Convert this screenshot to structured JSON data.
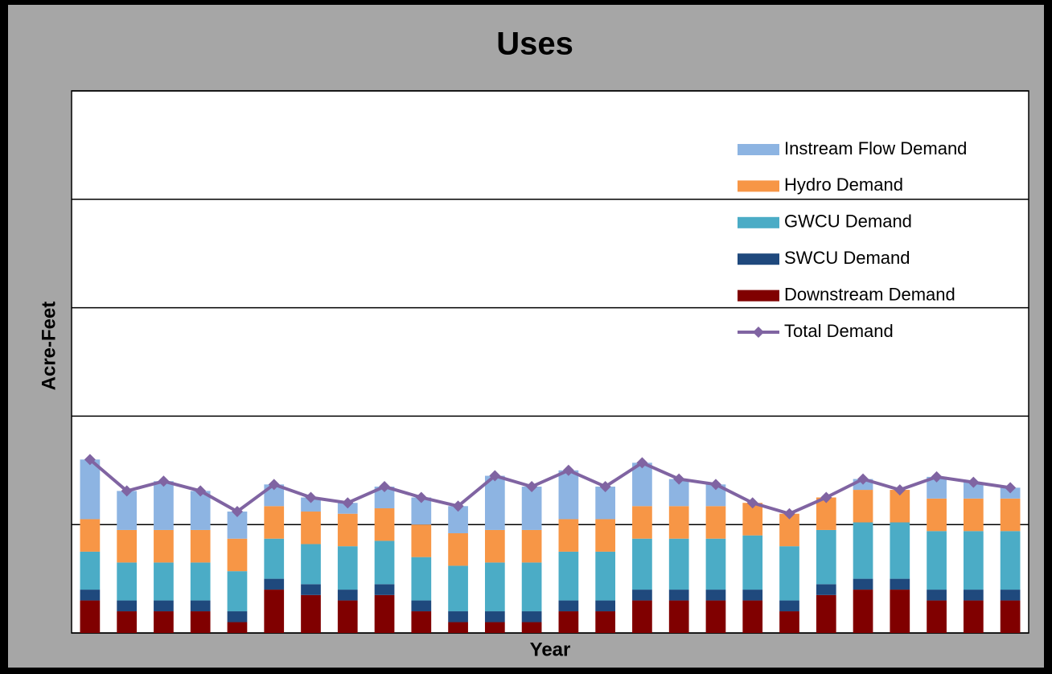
{
  "chart_data": {
    "type": "bar",
    "stacked": true,
    "title": "Uses",
    "xlabel": "Year",
    "ylabel": "Acre-Feet",
    "categories": [
      null,
      null,
      null,
      null,
      null,
      null,
      null,
      null,
      null,
      null,
      null,
      null,
      null,
      null,
      null,
      null,
      null,
      null,
      null,
      null,
      null,
      null,
      null,
      null,
      null,
      null
    ],
    "ylim": [
      0,
      5
    ],
    "yticks": [
      0,
      1,
      2,
      3,
      4,
      5
    ],
    "grid": true,
    "legend": "upper right",
    "series": [
      {
        "name": "Instream Flow Demand",
        "type": "bar",
        "color": "#8db4e2",
        "values": [
          0.55,
          0.36,
          0.45,
          0.36,
          0.25,
          0.2,
          0.13,
          0.1,
          0.2,
          0.25,
          0.25,
          0.5,
          0.4,
          0.45,
          0.3,
          0.4,
          0.25,
          0.2,
          0,
          0,
          0,
          0.1,
          0,
          0.2,
          0.15,
          0.1
        ]
      },
      {
        "name": "Hydro Demand",
        "type": "bar",
        "color": "#f79646",
        "values": [
          0.3,
          0.3,
          0.3,
          0.3,
          0.3,
          0.3,
          0.3,
          0.3,
          0.3,
          0.3,
          0.3,
          0.3,
          0.3,
          0.3,
          0.3,
          0.3,
          0.3,
          0.3,
          0.3,
          0.3,
          0.3,
          0.3,
          0.3,
          0.3,
          0.3,
          0.3
        ]
      },
      {
        "name": "GWCU Demand",
        "type": "bar",
        "color": "#4bacc6",
        "values": [
          0.35,
          0.35,
          0.35,
          0.35,
          0.37,
          0.37,
          0.37,
          0.4,
          0.4,
          0.4,
          0.42,
          0.45,
          0.45,
          0.45,
          0.45,
          0.47,
          0.47,
          0.47,
          0.5,
          0.5,
          0.5,
          0.52,
          0.52,
          0.54,
          0.54,
          0.54
        ]
      },
      {
        "name": "SWCU Demand",
        "type": "bar",
        "color": "#1f497d",
        "values": [
          0.1,
          0.1,
          0.1,
          0.1,
          0.1,
          0.1,
          0.1,
          0.1,
          0.1,
          0.1,
          0.1,
          0.1,
          0.1,
          0.1,
          0.1,
          0.1,
          0.1,
          0.1,
          0.1,
          0.1,
          0.1,
          0.1,
          0.1,
          0.1,
          0.1,
          0.1
        ]
      },
      {
        "name": "Downstream Demand",
        "type": "bar",
        "color": "#800000",
        "values": [
          0.3,
          0.2,
          0.2,
          0.2,
          0.1,
          0.4,
          0.35,
          0.3,
          0.35,
          0.2,
          0.1,
          0.1,
          0.1,
          0.2,
          0.2,
          0.3,
          0.3,
          0.3,
          0.3,
          0.2,
          0.35,
          0.4,
          0.4,
          0.3,
          0.3,
          0.3
        ]
      },
      {
        "name": "Total Demand",
        "type": "line",
        "color": "#8064a2",
        "values": [
          1.6,
          1.31,
          1.4,
          1.31,
          1.12,
          1.37,
          1.25,
          1.2,
          1.35,
          1.25,
          1.17,
          1.45,
          1.35,
          1.5,
          1.35,
          1.57,
          1.42,
          1.37,
          1.2,
          1.1,
          1.25,
          1.42,
          1.32,
          1.44,
          1.39,
          1.34
        ]
      }
    ]
  }
}
